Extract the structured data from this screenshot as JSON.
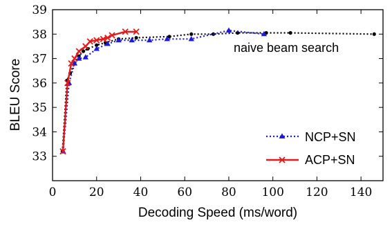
{
  "chart_data": {
    "type": "line",
    "xlabel": "Decoding Speed (ms/word)",
    "ylabel": "BLEU Score",
    "xlim": [
      0,
      150
    ],
    "ylim": [
      32,
      39
    ],
    "xticks": [
      0,
      20,
      40,
      60,
      80,
      100,
      120,
      140
    ],
    "yticks": [
      33,
      34,
      35,
      36,
      37,
      38,
      39
    ],
    "grid": false,
    "legend_position": "bottom-right",
    "annotation": "naive beam search",
    "series": [
      {
        "key": "naive",
        "color": "#000000",
        "line": "dotted",
        "marker": "dot",
        "x": [
          4.5,
          6.5,
          8,
          10,
          12,
          14,
          16,
          20,
          24,
          30,
          38,
          53,
          63,
          73,
          84,
          97,
          108,
          146
        ],
        "y": [
          33.2,
          36.1,
          36.4,
          36.8,
          37.1,
          37.3,
          37.4,
          37.55,
          37.65,
          37.8,
          37.85,
          37.9,
          38.0,
          38.0,
          38.05,
          38.05,
          38.05,
          38.0
        ]
      },
      {
        "name": "NCP+SN",
        "color": "#1c1cd9",
        "line": "dotted",
        "marker": "triangle",
        "x": [
          4.8,
          7.5,
          10,
          12,
          15,
          20,
          25,
          30,
          36,
          44,
          52,
          63,
          80,
          96
        ],
        "y": [
          33.2,
          36.0,
          36.8,
          37.0,
          37.05,
          37.4,
          37.6,
          37.75,
          37.75,
          37.75,
          37.8,
          37.8,
          38.15,
          38.0
        ]
      },
      {
        "name": "ACP+SN",
        "color": "#e31a1a",
        "line": "solid",
        "marker": "x",
        "x": [
          4.7,
          6.8,
          8.5,
          10,
          12,
          15,
          17,
          20,
          23,
          25,
          27,
          33,
          38
        ],
        "y": [
          33.2,
          36.0,
          36.8,
          37.0,
          37.3,
          37.5,
          37.7,
          37.75,
          37.8,
          37.85,
          37.95,
          38.1,
          38.1
        ]
      }
    ]
  }
}
